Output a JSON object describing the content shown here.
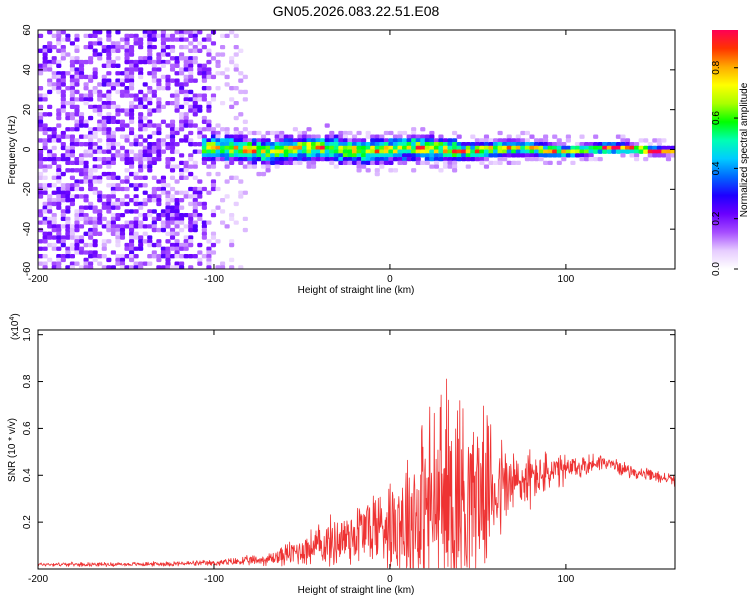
{
  "title": "GN05.2026.083.22.51.E08",
  "chart_data": [
    {
      "type": "heatmap",
      "title": "GN05.2026.083.22.51.E08",
      "xlabel": "Height of straight line (km)",
      "ylabel": "Frequency (Hz)",
      "xlim": [
        -200,
        162
      ],
      "ylim": [
        -60,
        60
      ],
      "xticks": [
        "-200",
        "-100",
        "0",
        "100"
      ],
      "yticks": [
        "60",
        "40",
        "20",
        "0",
        "-20",
        "-40",
        "-60"
      ],
      "colorbar": {
        "label": "Normalized spectral amplitude",
        "range": [
          0,
          0.95
        ],
        "ticks": [
          "0.0",
          "0.2",
          "0.4",
          "0.6",
          "0.8"
        ],
        "colors": [
          "#ffffff",
          "#e6ccff",
          "#a64dff",
          "#6a00ff",
          "#1e00ff",
          "#0066ff",
          "#00ccff",
          "#00ffb3",
          "#00ff00",
          "#aaff00",
          "#ffff00",
          "#ffaa00",
          "#ff3300",
          "#ff0055"
        ]
      },
      "description_regions": [
        {
          "x_range": [
            -200,
            -100
          ],
          "freq_range": [
            -60,
            60
          ],
          "amplitude": 0.15,
          "note": "broadband noise"
        },
        {
          "x_range": [
            -105,
            162
          ],
          "freq_center": 0,
          "freq_halfwidth": 6,
          "amplitude": 0.85,
          "note": "narrow band near 0 Hz"
        }
      ]
    },
    {
      "type": "line",
      "xlabel": "Height of straight line (km)",
      "ylabel": "SNR (10 * v/v)",
      "scale_label": "(x10",
      "scale_exp": "4",
      "scale_close": ")",
      "xlim": [
        -200,
        162
      ],
      "ylim": [
        0,
        1.02
      ],
      "xticks": [
        "-200",
        "-100",
        "0",
        "100"
      ],
      "yticks": [
        "0.2",
        "0.4",
        "0.6",
        "0.8",
        "1.0"
      ],
      "color": "#ee3333",
      "envelope": [
        {
          "x": -200,
          "base": 0.02,
          "amp": 0.01
        },
        {
          "x": -150,
          "base": 0.02,
          "amp": 0.01
        },
        {
          "x": -100,
          "base": 0.025,
          "amp": 0.015
        },
        {
          "x": -70,
          "base": 0.04,
          "amp": 0.03
        },
        {
          "x": -50,
          "base": 0.08,
          "amp": 0.08
        },
        {
          "x": -30,
          "base": 0.12,
          "amp": 0.14
        },
        {
          "x": -10,
          "base": 0.18,
          "amp": 0.2
        },
        {
          "x": 0,
          "base": 0.2,
          "amp": 0.24
        },
        {
          "x": 10,
          "base": 0.22,
          "amp": 0.38
        },
        {
          "x": 20,
          "base": 0.25,
          "amp": 0.5
        },
        {
          "x": 30,
          "base": 0.3,
          "amp": 0.58
        },
        {
          "x": 38,
          "base": 0.32,
          "amp": 0.62
        },
        {
          "x": 45,
          "base": 0.32,
          "amp": 0.5
        },
        {
          "x": 55,
          "base": 0.34,
          "amp": 0.36
        },
        {
          "x": 70,
          "base": 0.36,
          "amp": 0.2
        },
        {
          "x": 85,
          "base": 0.4,
          "amp": 0.12
        },
        {
          "x": 100,
          "base": 0.42,
          "amp": 0.08
        },
        {
          "x": 120,
          "base": 0.46,
          "amp": 0.04
        },
        {
          "x": 140,
          "base": 0.41,
          "amp": 0.03
        },
        {
          "x": 162,
          "base": 0.38,
          "amp": 0.03
        }
      ]
    }
  ]
}
